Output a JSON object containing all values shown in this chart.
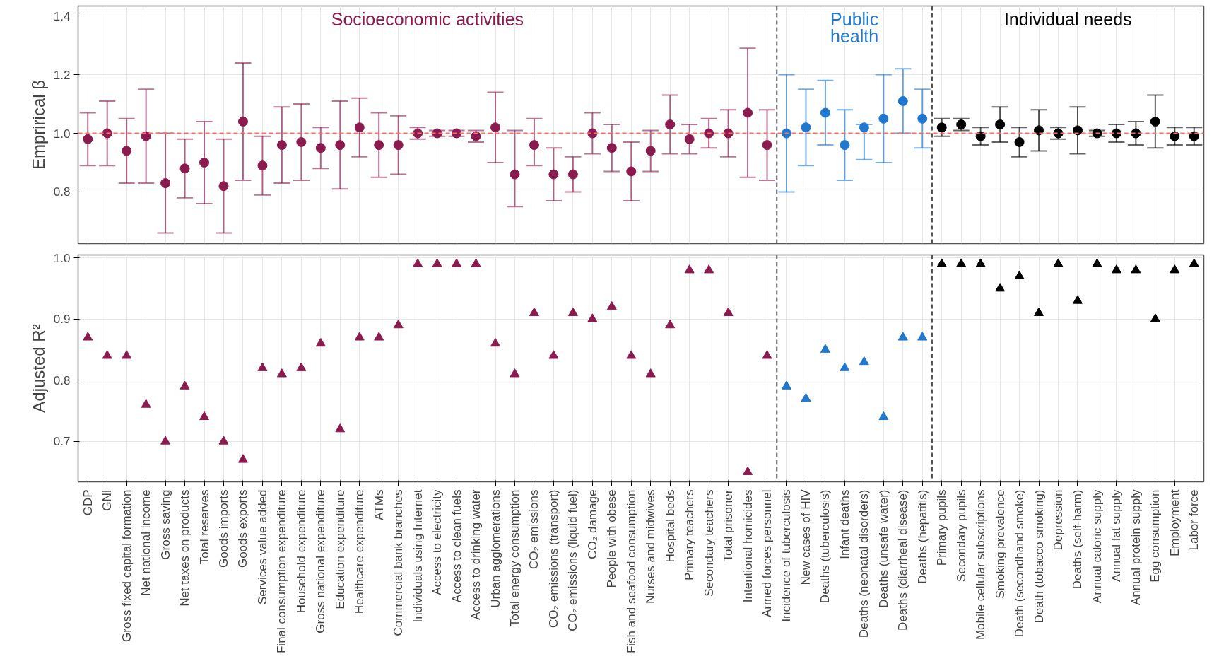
{
  "chart_data": [
    {
      "type": "scatter",
      "ylabel": "Emprirical β",
      "ylim": [
        0.624,
        1.434
      ],
      "yticks": [
        0.8,
        {
          "value": 1,
          "label": "1.0"
        },
        1.2,
        1.4
      ],
      "grid": true,
      "marker": "circle",
      "tick_labels": "y",
      "categories": [
        null,
        null,
        null,
        null,
        null,
        null,
        null,
        null,
        null,
        null,
        null,
        null,
        null,
        null,
        null,
        null,
        null,
        null,
        null,
        null,
        null,
        null,
        null,
        null,
        null,
        null,
        null,
        null,
        null,
        null,
        null,
        null,
        null,
        null,
        null,
        null,
        null,
        null,
        null,
        null,
        null,
        null,
        null,
        null,
        null,
        null,
        null,
        null,
        null,
        null,
        null,
        null,
        null,
        null,
        null,
        null,
        null,
        null
      ],
      "series": [
        {
          "name": "Socioeconomic activities",
          "color": "#8b1a4f",
          "values": [
            0.98,
            1.0,
            0.94,
            0.99,
            0.83,
            0.88,
            0.9,
            0.82,
            1.04,
            0.89,
            0.96,
            0.97,
            0.95,
            0.96,
            1.02,
            0.96,
            0.96,
            1.0,
            1.0,
            1.0,
            0.99,
            1.02,
            0.86,
            0.96,
            0.86,
            0.86,
            1.0,
            0.95,
            0.87,
            0.94,
            1.03,
            0.98,
            1.0,
            1.0,
            1.07,
            0.96,
            null,
            null,
            null,
            null,
            null,
            null,
            null,
            null,
            null,
            null,
            null,
            null,
            null,
            null,
            null,
            null,
            null,
            null,
            null,
            null,
            null,
            null
          ],
          "errors": [
            [
              0.89,
              1.07
            ],
            [
              0.89,
              1.11
            ],
            [
              0.83,
              1.05
            ],
            [
              0.83,
              1.15
            ],
            [
              0.66,
              1.0
            ],
            [
              0.78,
              0.98
            ],
            [
              0.76,
              1.04
            ],
            [
              0.66,
              0.98
            ],
            [
              0.84,
              1.24
            ],
            [
              0.79,
              0.99
            ],
            [
              0.83,
              1.09
            ],
            [
              0.84,
              1.1
            ],
            [
              0.88,
              1.02
            ],
            [
              0.81,
              1.11
            ],
            [
              0.92,
              1.12
            ],
            [
              0.85,
              1.07
            ],
            [
              0.86,
              1.06
            ],
            [
              0.98,
              1.02
            ],
            [
              0.99,
              1.01
            ],
            [
              0.99,
              1.01
            ],
            [
              0.97,
              1.01
            ],
            [
              0.9,
              1.14
            ],
            [
              0.75,
              1.01
            ],
            [
              0.89,
              1.05
            ],
            [
              0.77,
              0.95
            ],
            [
              0.8,
              0.92
            ],
            [
              0.93,
              1.07
            ],
            [
              0.87,
              1.03
            ],
            [
              0.77,
              0.97
            ],
            [
              0.87,
              1.01
            ],
            [
              0.93,
              1.13
            ],
            [
              0.93,
              1.03
            ],
            [
              0.95,
              1.05
            ],
            [
              0.92,
              1.08
            ],
            [
              0.85,
              1.29
            ],
            [
              0.84,
              1.08
            ],
            null,
            null,
            null,
            null,
            null,
            null,
            null,
            null,
            null,
            null,
            null,
            null,
            null,
            null,
            null,
            null,
            null,
            null,
            null,
            null,
            null,
            null
          ]
        },
        {
          "name": "Public\nhealth",
          "color": "#1f77d0",
          "values": [
            null,
            null,
            null,
            null,
            null,
            null,
            null,
            null,
            null,
            null,
            null,
            null,
            null,
            null,
            null,
            null,
            null,
            null,
            null,
            null,
            null,
            null,
            null,
            null,
            null,
            null,
            null,
            null,
            null,
            null,
            null,
            null,
            null,
            null,
            null,
            null,
            1.0,
            1.02,
            1.07,
            0.96,
            1.02,
            1.05,
            1.11,
            1.05,
            null,
            null,
            null,
            null,
            null,
            null,
            null,
            null,
            null,
            null,
            null,
            null,
            null,
            null
          ],
          "errors": [
            null,
            null,
            null,
            null,
            null,
            null,
            null,
            null,
            null,
            null,
            null,
            null,
            null,
            null,
            null,
            null,
            null,
            null,
            null,
            null,
            null,
            null,
            null,
            null,
            null,
            null,
            null,
            null,
            null,
            null,
            null,
            null,
            null,
            null,
            null,
            null,
            [
              0.8,
              1.2
            ],
            [
              0.89,
              1.15
            ],
            [
              0.96,
              1.18
            ],
            [
              0.84,
              1.08
            ],
            [
              0.91,
              1.03
            ],
            [
              0.9,
              1.2
            ],
            [
              1.0,
              1.22
            ],
            [
              0.95,
              1.15
            ],
            null,
            null,
            null,
            null,
            null,
            null,
            null,
            null,
            null,
            null,
            null,
            null,
            null,
            null
          ]
        },
        {
          "name": "Individual needs",
          "color": "#000000",
          "values": [
            null,
            null,
            null,
            null,
            null,
            null,
            null,
            null,
            null,
            null,
            null,
            null,
            null,
            null,
            null,
            null,
            null,
            null,
            null,
            null,
            null,
            null,
            null,
            null,
            null,
            null,
            null,
            null,
            null,
            null,
            null,
            null,
            null,
            null,
            null,
            null,
            null,
            null,
            null,
            null,
            null,
            null,
            null,
            null,
            1.02,
            1.03,
            0.99,
            1.03,
            0.97,
            1.01,
            1.0,
            1.01,
            1.0,
            1.0,
            1.0,
            1.04,
            0.99,
            0.99
          ],
          "errors": [
            null,
            null,
            null,
            null,
            null,
            null,
            null,
            null,
            null,
            null,
            null,
            null,
            null,
            null,
            null,
            null,
            null,
            null,
            null,
            null,
            null,
            null,
            null,
            null,
            null,
            null,
            null,
            null,
            null,
            null,
            null,
            null,
            null,
            null,
            null,
            null,
            null,
            null,
            null,
            null,
            null,
            null,
            null,
            null,
            [
              0.99,
              1.05
            ],
            [
              1.01,
              1.05
            ],
            [
              0.96,
              1.02
            ],
            [
              0.97,
              1.09
            ],
            [
              0.92,
              1.02
            ],
            [
              0.94,
              1.08
            ],
            [
              0.98,
              1.02
            ],
            [
              0.93,
              1.09
            ],
            [
              0.99,
              1.01
            ],
            [
              0.97,
              1.03
            ],
            [
              0.96,
              1.04
            ],
            [
              0.95,
              1.13
            ],
            [
              0.96,
              1.02
            ],
            [
              0.96,
              1.02
            ]
          ]
        }
      ],
      "ref_lines": [
        {
          "axis": "y",
          "value": 1.0,
          "color": "#ff6f61",
          "line_style": "dashed"
        }
      ]
    },
    {
      "type": "scatter",
      "ylabel": "Adjusted R²",
      "ylim": [
        0.634,
        1.005
      ],
      "yticks": [
        0.7,
        0.8,
        0.9,
        {
          "value": 1,
          "label": "1.0"
        }
      ],
      "grid": true,
      "marker": "triangle",
      "categories": [
        "GDP",
        "GNI",
        "Gross fixed capital formation",
        "Net national income",
        "Gross saving",
        "Net taxes on products",
        "Total reserves",
        "Goods imports",
        "Goods exports",
        "Services value added",
        "Final consumption expenditure",
        "Household expenditure",
        "Gross national expenditure",
        "Education expenditure",
        "Healthcare expenditure",
        "ATMs",
        "Commercial bank branches",
        "Individuals using Internet",
        "Access to electricity",
        "Access to clean fuels",
        "Access to drinking water",
        "Urban agglomerations",
        "Total energy consumption",
        "CO₂ emissions",
        "CO₂ emissions (transport)",
        "CO₂ emissions (liquid fuel)",
        "CO₂ damage",
        "People with obese",
        "Fish and seafood consumption",
        "Nurses and midwives",
        "Hospital beds",
        "Primary teachers",
        "Secondary teachers",
        "Total prisoner",
        "Intentional homicides",
        "Armed forces personnel",
        "Incidence of tuberculosis",
        "New cases of HIV",
        "Deaths (tuberculosis)",
        "Infant deaths",
        "Deaths (neonatal disorders)",
        "Deaths (unsafe water)",
        "Deaths (diarrheal disease)",
        "Deaths (hepatitis)",
        "Primary pupils",
        "Secondary pupils",
        "Mobile cellular subscriptions",
        "Smoking prevalence",
        "Death (secondhand smoke)",
        "Death (tobacco smoking)",
        "Depression",
        "Deaths (self-harm)",
        "Annual caloric supply",
        "Annual fat supply",
        "Annual protein supply",
        "Egg consumption",
        "Employment",
        "Labor force"
      ],
      "series": [
        {
          "color": "#8b1a4f",
          "values": [
            0.87,
            0.84,
            0.84,
            0.76,
            0.7,
            0.79,
            0.74,
            0.7,
            0.67,
            0.82,
            0.81,
            0.82,
            0.86,
            0.72,
            0.87,
            0.87,
            0.89,
            0.99,
            0.99,
            0.99,
            0.99,
            0.86,
            0.81,
            0.91,
            0.84,
            0.91,
            0.9,
            0.92,
            0.84,
            0.81,
            0.89,
            0.98,
            0.98,
            0.91,
            0.65,
            0.84,
            null,
            null,
            null,
            null,
            null,
            null,
            null,
            null,
            null,
            null,
            null,
            null,
            null,
            null,
            null,
            null,
            null,
            null,
            null,
            null,
            null,
            null
          ]
        },
        {
          "color": "#1f77d0",
          "values": [
            null,
            null,
            null,
            null,
            null,
            null,
            null,
            null,
            null,
            null,
            null,
            null,
            null,
            null,
            null,
            null,
            null,
            null,
            null,
            null,
            null,
            null,
            null,
            null,
            null,
            null,
            null,
            null,
            null,
            null,
            null,
            null,
            null,
            null,
            null,
            null,
            0.79,
            0.77,
            0.85,
            0.82,
            0.83,
            0.74,
            0.87,
            0.87,
            null,
            null,
            null,
            null,
            null,
            null,
            null,
            null,
            null,
            null,
            null,
            null,
            null,
            null
          ]
        },
        {
          "color": "#000000",
          "values": [
            null,
            null,
            null,
            null,
            null,
            null,
            null,
            null,
            null,
            null,
            null,
            null,
            null,
            null,
            null,
            null,
            null,
            null,
            null,
            null,
            null,
            null,
            null,
            null,
            null,
            null,
            null,
            null,
            null,
            null,
            null,
            null,
            null,
            null,
            null,
            null,
            null,
            null,
            null,
            null,
            null,
            null,
            null,
            null,
            0.99,
            0.99,
            0.99,
            0.95,
            0.97,
            0.91,
            0.99,
            0.93,
            0.99,
            0.98,
            0.98,
            0.9,
            0.98,
            0.99
          ]
        }
      ]
    }
  ]
}
